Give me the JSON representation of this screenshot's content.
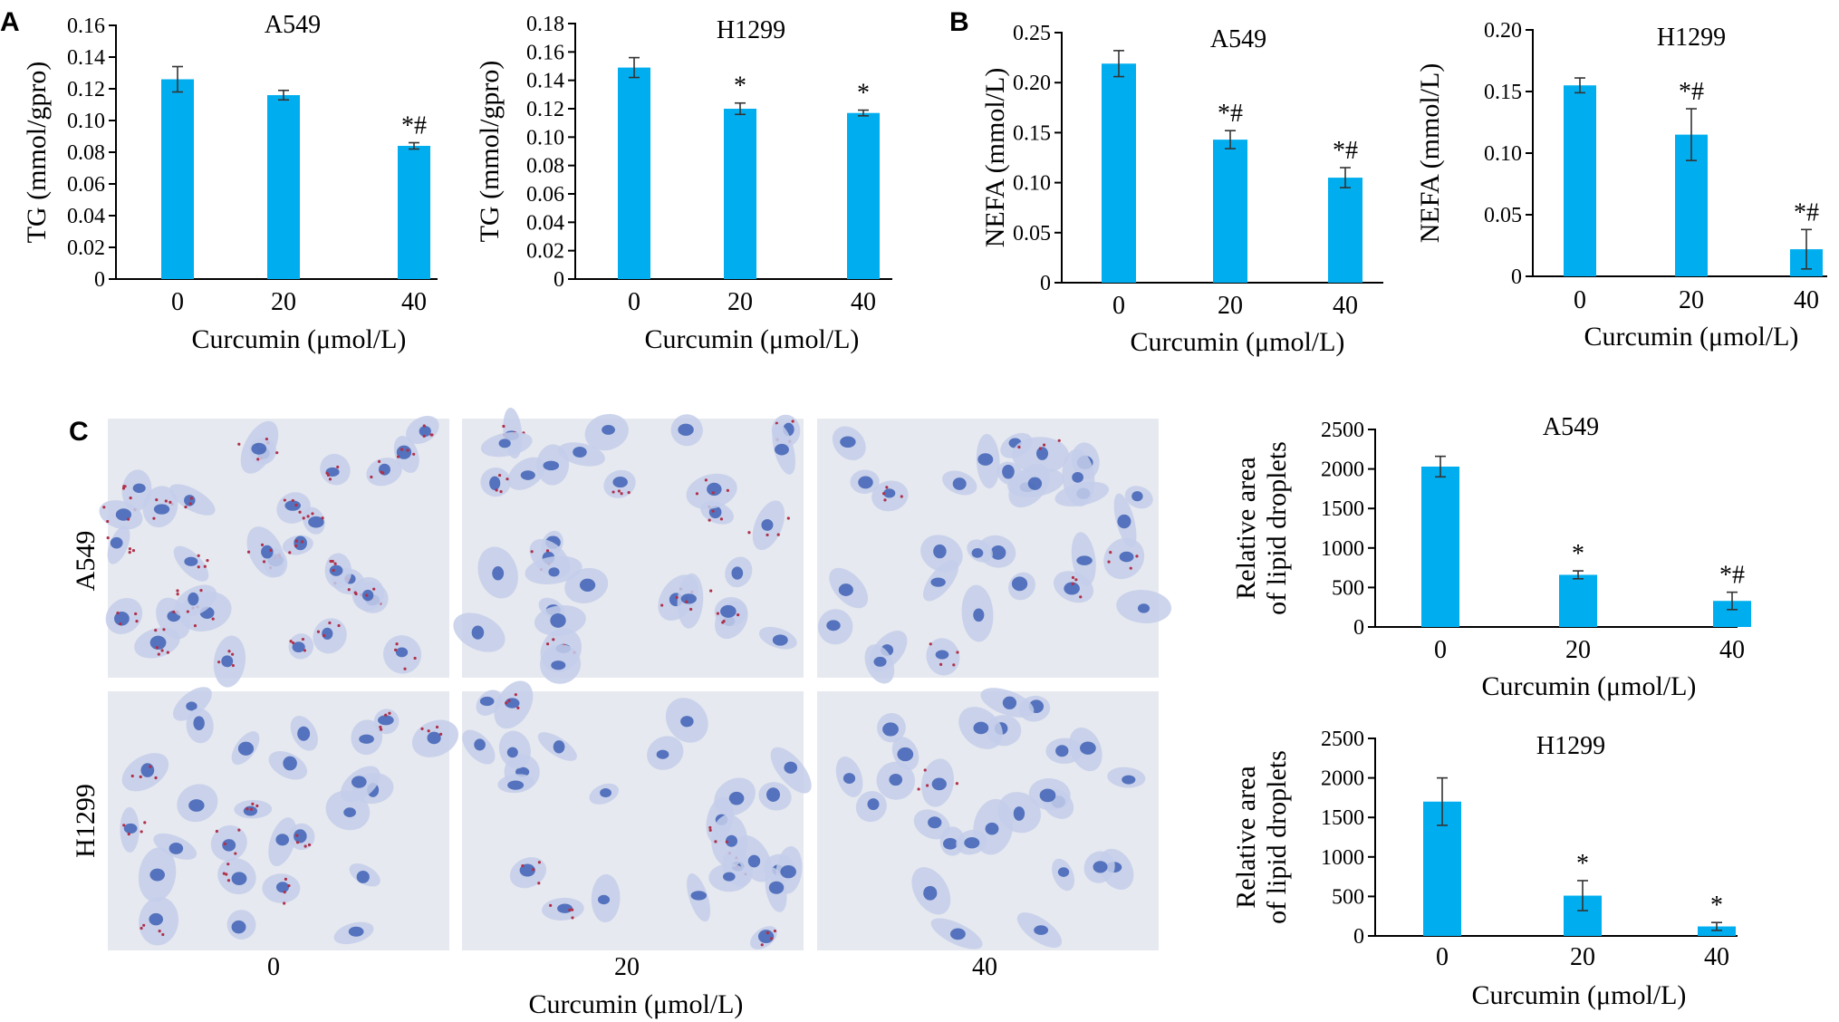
{
  "panel_labels": {
    "a": "A",
    "b": "B",
    "c": "C"
  },
  "colors": {
    "bar": "#00AEEF",
    "axis": "#000000",
    "text": "#000000"
  },
  "micrograph": {
    "rows": [
      "A549",
      "H1299"
    ],
    "columns": [
      "0",
      "20",
      "40"
    ],
    "xlabel": "Curcumin (μmol/L)",
    "description_colors": {
      "background": "#e6e9ef",
      "cytoplasm": "#c4ceea",
      "nucleus": "#3f62b5",
      "lipid": "#b0304a"
    }
  },
  "chart_data": [
    {
      "id": "tg-a549",
      "type": "bar",
      "title": "A549",
      "xlabel": "Curcumin (μmol/L)",
      "ylabel": "TG (mmol/gpro)",
      "categories": [
        "0",
        "20",
        "40"
      ],
      "values": [
        0.126,
        0.116,
        0.084
      ],
      "errors": [
        0.008,
        0.003,
        0.002
      ],
      "annotations": [
        "",
        "",
        "*#"
      ],
      "ylim": [
        0,
        0.16
      ],
      "yticks": [
        "0",
        "0.02",
        "0.04",
        "0.06",
        "0.08",
        "0.10",
        "0.12",
        "0.14",
        "0.16"
      ],
      "ytick_values": [
        0,
        0.02,
        0.04,
        0.06,
        0.08,
        0.1,
        0.12,
        0.14,
        0.16
      ]
    },
    {
      "id": "tg-h1299",
      "type": "bar",
      "title": "H1299",
      "xlabel": "Curcumin (μmol/L)",
      "ylabel": "TG (mmol/gpro)",
      "categories": [
        "0",
        "20",
        "40"
      ],
      "values": [
        0.149,
        0.12,
        0.117
      ],
      "errors": [
        0.007,
        0.004,
        0.002
      ],
      "annotations": [
        "",
        "*",
        "*"
      ],
      "ylim": [
        0,
        0.18
      ],
      "yticks": [
        "0",
        "0.02",
        "0.04",
        "0.06",
        "0.08",
        "0.10",
        "0.12",
        "0.14",
        "0.16",
        "0.18"
      ],
      "ytick_values": [
        0,
        0.02,
        0.04,
        0.06,
        0.08,
        0.1,
        0.12,
        0.14,
        0.16,
        0.18
      ]
    },
    {
      "id": "nefa-a549",
      "type": "bar",
      "title": "A549",
      "xlabel": "Curcumin (μmol/L)",
      "ylabel": "NEFA (mmol/L)",
      "categories": [
        "0",
        "20",
        "40"
      ],
      "values": [
        0.219,
        0.143,
        0.105
      ],
      "errors": [
        0.013,
        0.009,
        0.01
      ],
      "annotations": [
        "",
        "*#",
        "*#"
      ],
      "ylim": [
        0,
        0.25
      ],
      "yticks": [
        "0",
        "0.05",
        "0.10",
        "0.15",
        "0.20",
        "0.25"
      ],
      "ytick_values": [
        0,
        0.05,
        0.1,
        0.15,
        0.2,
        0.25
      ]
    },
    {
      "id": "nefa-h1299",
      "type": "bar",
      "title": "H1299",
      "xlabel": "Curcumin (μmol/L)",
      "ylabel": "NEFA (mmol/L)",
      "categories": [
        "0",
        "20",
        "40"
      ],
      "values": [
        0.155,
        0.115,
        0.022
      ],
      "errors": [
        0.006,
        0.021,
        0.016
      ],
      "annotations": [
        "",
        "*#",
        "*#"
      ],
      "ylim": [
        0,
        0.2
      ],
      "yticks": [
        "0",
        "0.05",
        "0.10",
        "0.15",
        "0.20"
      ],
      "ytick_values": [
        0,
        0.05,
        0.1,
        0.15,
        0.2
      ]
    },
    {
      "id": "lipid-a549",
      "type": "bar",
      "title": "A549",
      "xlabel": "Curcumin (μmol/L)",
      "ylabel": [
        "Relative area",
        "of lipid droplets"
      ],
      "categories": [
        "0",
        "20",
        "40"
      ],
      "values": [
        2030,
        660,
        330
      ],
      "errors": [
        130,
        50,
        110
      ],
      "annotations": [
        "",
        "*",
        "*#"
      ],
      "ylim": [
        0,
        2500
      ],
      "yticks": [
        "0",
        "500",
        "1000",
        "1500",
        "2000",
        "2500"
      ],
      "ytick_values": [
        0,
        500,
        1000,
        1500,
        2000,
        2500
      ]
    },
    {
      "id": "lipid-h1299",
      "type": "bar",
      "title": "H1299",
      "xlabel": "Curcumin (μmol/L)",
      "ylabel": [
        "Relative area",
        "of lipid droplets"
      ],
      "categories": [
        "0",
        "20",
        "40"
      ],
      "values": [
        1700,
        510,
        120
      ],
      "errors": [
        300,
        190,
        50
      ],
      "annotations": [
        "",
        "*",
        "*"
      ],
      "ylim": [
        0,
        2500
      ],
      "yticks": [
        "0",
        "500",
        "1000",
        "1500",
        "2000",
        "2500"
      ],
      "ytick_values": [
        0,
        500,
        1000,
        1500,
        2000,
        2500
      ]
    }
  ]
}
